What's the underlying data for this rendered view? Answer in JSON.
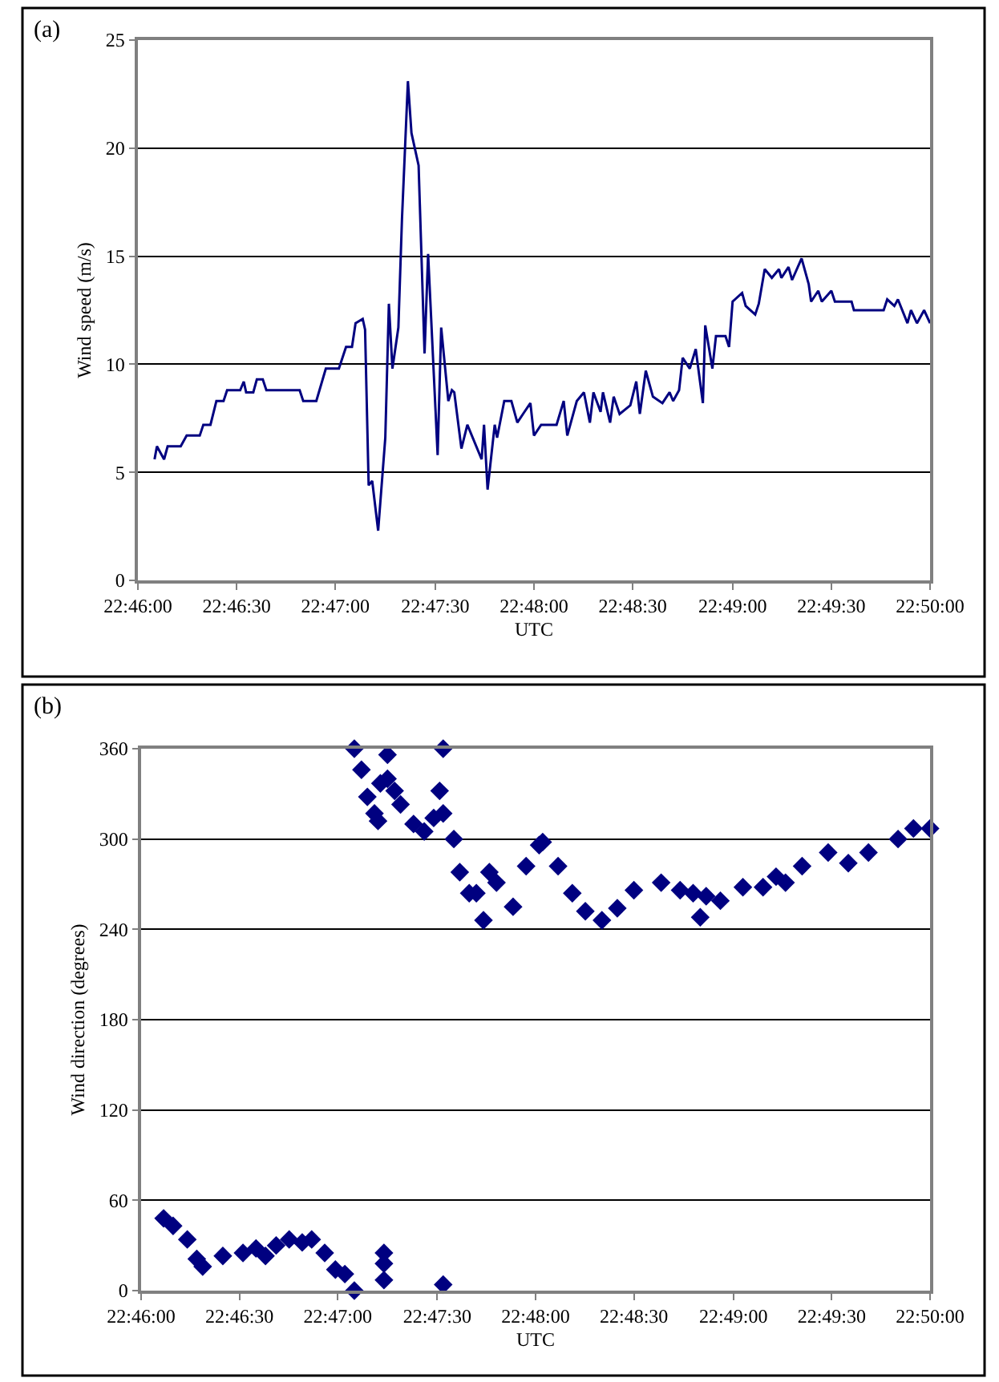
{
  "chart_data": [
    {
      "type": "line",
      "xlabel": "UTC",
      "ylabel": "Wind speed (m/s)",
      "annotations": [
        "(a)"
      ],
      "color": "#000080",
      "grid": "y",
      "x": [
        22.7681,
        22.7683,
        22.7689,
        22.7692,
        22.7703,
        22.7708,
        22.7719,
        22.7722,
        22.7728,
        22.7733,
        22.7739,
        22.7742,
        22.7753,
        22.7756,
        22.7758,
        22.7764,
        22.7767,
        22.7772,
        22.7775,
        22.7803,
        22.7806,
        22.7817,
        22.7825,
        22.7836,
        22.7842,
        22.7847,
        22.785,
        22.7856,
        22.7858,
        22.7861,
        22.7864,
        22.7869,
        22.7875,
        22.7878,
        22.7881,
        22.7886,
        22.7889,
        22.7894,
        22.7897,
        22.7903,
        22.7908,
        22.7911,
        22.7919,
        22.7922,
        22.7928,
        22.7931,
        22.7933,
        22.7939,
        22.7944,
        22.7956,
        22.7958,
        22.7961,
        22.7967,
        22.7969,
        22.7975,
        22.7981,
        22.7986,
        22.7992,
        22.7997,
        22.8,
        22.8006,
        22.8019,
        22.8025,
        22.8028,
        22.8036,
        22.8042,
        22.8047,
        22.805,
        22.8056,
        22.8058,
        22.8064,
        22.8067,
        22.8072,
        22.8081,
        22.8086,
        22.8089,
        22.8094,
        22.81,
        22.8108,
        22.8114,
        22.8117,
        22.8122,
        22.8125,
        22.8131,
        22.8136,
        22.8142,
        22.8144,
        22.815,
        22.8153,
        22.8161,
        22.8164,
        22.8167,
        22.8175,
        22.8178,
        22.8186,
        22.8189,
        22.8194,
        22.82,
        22.8206,
        22.8208,
        22.8214,
        22.8217,
        22.8225,
        22.8231,
        22.8233,
        22.8239,
        22.8242,
        22.825,
        22.8253,
        22.8267,
        22.8269,
        22.8294,
        22.8297,
        22.8303,
        22.8306,
        22.8314,
        22.8317,
        22.8322,
        22.8328,
        22.8333
      ],
      "values": [
        5.6,
        6.2,
        5.6,
        6.2,
        6.2,
        6.7,
        6.7,
        7.2,
        7.2,
        8.3,
        8.3,
        8.8,
        8.8,
        9.2,
        8.7,
        8.7,
        9.3,
        9.3,
        8.8,
        8.8,
        8.3,
        8.3,
        9.8,
        9.8,
        10.8,
        10.8,
        11.9,
        12.1,
        11.6,
        4.4,
        4.6,
        2.3,
        6.6,
        12.8,
        9.8,
        11.7,
        16.7,
        23.1,
        20.7,
        19.2,
        10.5,
        15.1,
        5.8,
        11.7,
        8.3,
        8.8,
        8.7,
        6.1,
        7.2,
        5.6,
        7.2,
        4.2,
        7.2,
        6.6,
        8.3,
        8.3,
        7.3,
        7.8,
        8.2,
        6.7,
        7.2,
        7.2,
        8.3,
        6.7,
        8.3,
        8.7,
        7.3,
        8.7,
        7.8,
        8.7,
        7.3,
        8.5,
        7.7,
        8.1,
        9.2,
        7.7,
        9.7,
        8.5,
        8.2,
        8.7,
        8.3,
        8.8,
        10.3,
        9.8,
        10.7,
        8.2,
        11.8,
        9.8,
        11.3,
        11.3,
        10.8,
        12.9,
        13.3,
        12.7,
        12.3,
        12.8,
        14.4,
        14.0,
        14.4,
        14.0,
        14.5,
        13.9,
        14.9,
        13.7,
        12.9,
        13.4,
        12.9,
        13.4,
        12.9,
        12.9,
        12.5,
        12.5,
        13.0,
        12.7,
        13.0,
        11.9,
        12.5,
        11.9,
        12.5,
        11.9
      ],
      "xlim": [
        22.7667,
        22.8333
      ],
      "xticks": [
        {
          "value": 22.7667,
          "label": "22:46:00"
        },
        {
          "value": 22.775,
          "label": "22:46:30"
        },
        {
          "value": 22.7833,
          "label": "22:47:00"
        },
        {
          "value": 22.7917,
          "label": "22:47:30"
        },
        {
          "value": 22.8,
          "label": "22:48:00"
        },
        {
          "value": 22.8083,
          "label": "22:48:30"
        },
        {
          "value": 22.8167,
          "label": "22:49:00"
        },
        {
          "value": 22.825,
          "label": "22:49:30"
        },
        {
          "value": 22.8333,
          "label": "22:50:00"
        }
      ],
      "ylim": [
        0,
        25
      ],
      "yticks": [
        0,
        5,
        10,
        15,
        20,
        25
      ]
    },
    {
      "type": "scatter",
      "xlabel": "UTC",
      "ylabel": "Wind direction (degrees)",
      "annotations": [
        "(b)"
      ],
      "color": "#000080",
      "grid": "y",
      "marker": "diamond",
      "x": [
        22.7686,
        22.7694,
        22.7706,
        22.7714,
        22.7719,
        22.7736,
        22.7753,
        22.7764,
        22.7772,
        22.7781,
        22.7792,
        22.7803,
        22.7811,
        22.7822,
        22.7831,
        22.7839,
        22.7847,
        22.7872,
        22.7872,
        22.7872,
        22.7922,
        22.7847,
        22.7853,
        22.7858,
        22.7864,
        22.7867,
        22.7869,
        22.7875,
        22.7875,
        22.7881,
        22.7886,
        22.7897,
        22.7906,
        22.7914,
        22.7919,
        22.7922,
        22.7922,
        22.7931,
        22.7936,
        22.7944,
        22.795,
        22.7956,
        22.7961,
        22.7967,
        22.7981,
        22.7992,
        22.8003,
        22.8006,
        22.8019,
        22.8031,
        22.8042,
        22.8056,
        22.8069,
        22.8083,
        22.8106,
        22.8122,
        22.8133,
        22.8139,
        22.8144,
        22.8156,
        22.8175,
        22.8192,
        22.8203,
        22.8211,
        22.8225,
        22.8247,
        22.8264,
        22.8281,
        22.8306,
        22.8319,
        22.8333
      ],
      "values": [
        48,
        43,
        34,
        21,
        16,
        23,
        25,
        28,
        23,
        30,
        34,
        32,
        34,
        25,
        14,
        11,
        0,
        25,
        18,
        7,
        4,
        360,
        346,
        328,
        317,
        312,
        337,
        356,
        340,
        332,
        323,
        310,
        305,
        314,
        332,
        360,
        317,
        300,
        278,
        264,
        264,
        246,
        278,
        271,
        255,
        282,
        296,
        298,
        282,
        264,
        252,
        246,
        254,
        266,
        271,
        266,
        264,
        248,
        262,
        259,
        268,
        268,
        275,
        271,
        282,
        291,
        284,
        291,
        300,
        307,
        307
      ],
      "xlim": [
        22.7667,
        22.8333
      ],
      "xticks": [
        {
          "value": 22.7667,
          "label": "22:46:00"
        },
        {
          "value": 22.775,
          "label": "22:46:30"
        },
        {
          "value": 22.7833,
          "label": "22:47:00"
        },
        {
          "value": 22.7917,
          "label": "22:47:30"
        },
        {
          "value": 22.8,
          "label": "22:48:00"
        },
        {
          "value": 22.8083,
          "label": "22:48:30"
        },
        {
          "value": 22.8167,
          "label": "22:49:00"
        },
        {
          "value": 22.825,
          "label": "22:49:30"
        },
        {
          "value": 22.8333,
          "label": "22:50:00"
        }
      ],
      "ylim": [
        0,
        360
      ],
      "yticks": [
        0,
        60,
        120,
        180,
        240,
        300,
        360
      ]
    }
  ]
}
